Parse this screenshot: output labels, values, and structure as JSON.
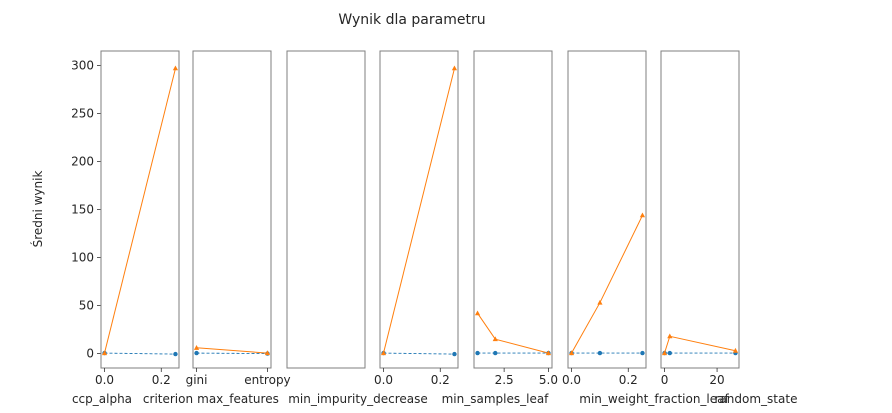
{
  "chart_data": {
    "type": "line",
    "title": "Wynik dla parametru",
    "ylabel": "Średni wynik",
    "ylim": [
      -15,
      315
    ],
    "yticks": [
      0,
      50,
      100,
      150,
      200,
      250,
      300
    ],
    "colors": {
      "series_blue": "#1f77b4",
      "series_orange": "#ff7f0e"
    },
    "panels": [
      {
        "xlabel": "ccp_alpha",
        "x_kind": "numeric",
        "xlim": [
          -0.0125,
          0.2625
        ],
        "xticks": [
          "0.0",
          "0.2"
        ],
        "xtick_values": [
          0,
          0.2
        ],
        "series": [
          {
            "style": "dashed",
            "marker": "circle",
            "x": [
              0,
              0.25
            ],
            "values": [
              0.5,
              -0.5
            ]
          },
          {
            "style": "solid",
            "marker": "triangle",
            "x": [
              0,
              0.25
            ],
            "values": [
              0.5,
              297
            ]
          }
        ]
      },
      {
        "xlabel": "criterion",
        "x_kind": "categorical",
        "categories": [
          "gini",
          "entropy"
        ],
        "xticks": [
          "gini",
          "entropy"
        ],
        "xtick_values": [
          0,
          1
        ],
        "xlim": [
          -0.05,
          1.05
        ],
        "series": [
          {
            "style": "dashed",
            "marker": "circle",
            "x": [
              0,
              1
            ],
            "values": [
              0.5,
              0
            ]
          },
          {
            "style": "solid",
            "marker": "triangle",
            "x": [
              0,
              1
            ],
            "values": [
              6,
              0.5
            ]
          }
        ]
      },
      {
        "xlabel": "max_features",
        "x_kind": "empty",
        "xticks": [],
        "xtick_values": [],
        "series": []
      },
      {
        "xlabel": "min_impurity_decrease",
        "x_kind": "numeric",
        "xlim": [
          -0.0125,
          0.2625
        ],
        "xticks": [
          "0.0",
          "0.2"
        ],
        "xtick_values": [
          0,
          0.2
        ],
        "series": [
          {
            "style": "dashed",
            "marker": "circle",
            "x": [
              0,
              0.25
            ],
            "values": [
              0.5,
              -0.5
            ]
          },
          {
            "style": "solid",
            "marker": "triangle",
            "x": [
              0,
              0.25
            ],
            "values": [
              0.5,
              297
            ]
          }
        ]
      },
      {
        "xlabel": "min_samples_leaf",
        "x_kind": "numeric",
        "xlim": [
          0.8,
          5.2
        ],
        "xticks": [
          "2.5",
          "5.0"
        ],
        "xtick_values": [
          2.5,
          5.0
        ],
        "series": [
          {
            "style": "dashed",
            "marker": "circle",
            "x": [
              1,
              2,
              5
            ],
            "values": [
              0.5,
              0.5,
              0.5
            ]
          },
          {
            "style": "solid",
            "marker": "triangle",
            "x": [
              1,
              2,
              5
            ],
            "values": [
              42,
              15,
              0.5
            ]
          }
        ]
      },
      {
        "xlabel": "min_weight_fraction_leaf",
        "x_kind": "numeric",
        "xlim": [
          -0.0125,
          0.2625
        ],
        "xticks": [
          "0.0",
          "0.2"
        ],
        "xtick_values": [
          0,
          0.2
        ],
        "series": [
          {
            "style": "dashed",
            "marker": "circle",
            "x": [
              0,
              0.1,
              0.25
            ],
            "values": [
              0.5,
              0.5,
              0.5
            ]
          },
          {
            "style": "solid",
            "marker": "triangle",
            "x": [
              0,
              0.1,
              0.25
            ],
            "values": [
              0.5,
              53,
              144
            ]
          }
        ]
      },
      {
        "xlabel": "random_state",
        "x_kind": "numeric",
        "xlim": [
          -1.35,
          28.35
        ],
        "xticks": [
          "0",
          "20"
        ],
        "xtick_values": [
          0,
          20
        ],
        "series": [
          {
            "style": "dashed",
            "marker": "circle",
            "x": [
              0,
              2,
              27
            ],
            "values": [
              0.5,
              0.5,
              0.5
            ]
          },
          {
            "style": "solid",
            "marker": "triangle",
            "x": [
              0,
              2,
              27
            ],
            "values": [
              0.5,
              18,
              3
            ]
          }
        ]
      }
    ]
  }
}
